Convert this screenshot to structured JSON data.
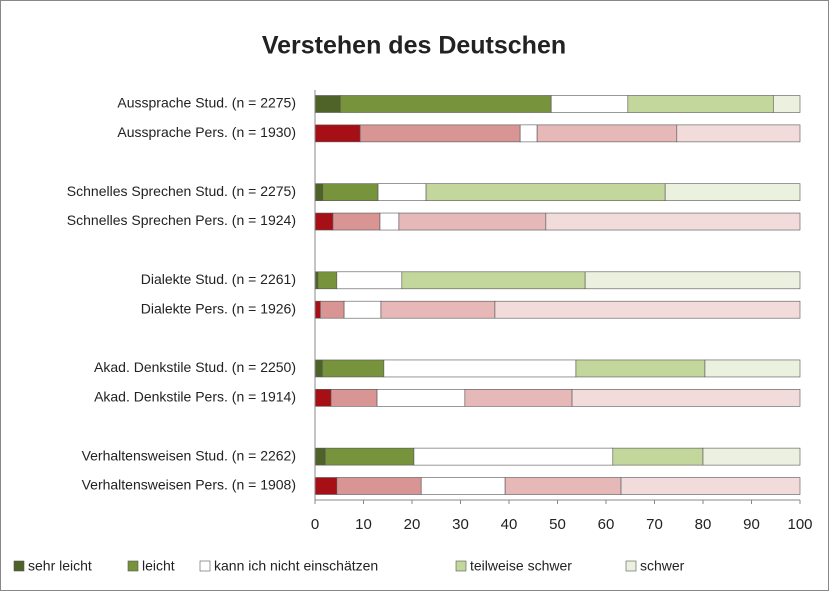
{
  "chart_data": {
    "type": "stacked-barh",
    "title": "Verstehen des Deutschen",
    "categories": [
      "Aussprache Stud. (n = 2275)",
      "Aussprache Pers. (n = 1930)",
      null,
      "Schnelles Sprechen Stud. (n = 2275)",
      "Schnelles Sprechen Pers. (n = 1924)",
      null,
      "Dialekte Stud. (n = 2261)",
      "Dialekte Pers. (n = 1926)",
      null,
      "Akad. Denkstile Stud. (n = 2250)",
      "Akad. Denkstile Pers. (n = 1914)",
      null,
      "Verhaltensweisen Stud. (n = 2262)",
      "Verhaltensweisen Pers. (n = 1908)"
    ],
    "series": [
      {
        "name": "sehr leicht",
        "color": "#4f6228",
        "colors": [
          "#4f6228",
          "#a50f15",
          null,
          "#4f6228",
          "#a50f15",
          null,
          "#4f6228",
          "#a50f15",
          null,
          "#4f6228",
          "#a50f15",
          null,
          "#4f6228",
          "#a50f15"
        ],
        "values": [
          5.2,
          9.3,
          null,
          1.6,
          3.7,
          null,
          0.6,
          1.1,
          null,
          1.5,
          3.3,
          null,
          2.1,
          4.5
        ]
      },
      {
        "name": "leicht",
        "color": "#77933c",
        "colors": [
          "#77933c",
          "#d99594",
          null,
          "#77933c",
          "#d99594",
          null,
          "#77933c",
          "#d99594",
          null,
          "#77933c",
          "#d99594",
          null,
          "#77933c",
          "#d99594"
        ],
        "values": [
          43.5,
          33,
          null,
          11.4,
          9.7,
          null,
          3.9,
          4.9,
          null,
          12.7,
          9.5,
          null,
          18.3,
          17.4
        ]
      },
      {
        "name": "kann ich nicht einschätzen",
        "color": "#ffffff",
        "colors": [
          "#ffffff",
          "#ffffff",
          null,
          "#ffffff",
          "#ffffff",
          null,
          "#ffffff",
          "#ffffff",
          null,
          "#ffffff",
          "#ffffff",
          null,
          "#ffffff",
          "#ffffff"
        ],
        "values": [
          15.8,
          3.5,
          null,
          9.9,
          3.9,
          null,
          13.4,
          7.6,
          null,
          39.6,
          18.1,
          null,
          41,
          17.3
        ]
      },
      {
        "name": "teilweise schwer",
        "color": "#c3d69b",
        "colors": [
          "#c3d69b",
          "#e6b9b8",
          null,
          "#c3d69b",
          "#e6b9b8",
          null,
          "#c3d69b",
          "#e6b9b8",
          null,
          "#c3d69b",
          "#e6b9b8",
          null,
          "#c3d69b",
          "#e6b9b8"
        ],
        "values": [
          30,
          28.8,
          null,
          49.3,
          30.3,
          null,
          37.8,
          23.5,
          null,
          26.6,
          22.1,
          null,
          18.6,
          23.9
        ]
      },
      {
        "name": "schwer",
        "color": "#ebf1de",
        "colors": [
          "#ebf1de",
          "#f2dcdb",
          null,
          "#ebf1de",
          "#f2dcdb",
          null,
          "#ebf1de",
          "#f2dcdb",
          null,
          "#ebf1de",
          "#f2dcdb",
          null,
          "#ebf1de",
          "#f2dcdb"
        ],
        "values": [
          5.5,
          25.4,
          null,
          27.8,
          52.4,
          null,
          44.3,
          62.9,
          null,
          19.6,
          47,
          null,
          20,
          36.9
        ]
      }
    ],
    "xlim": [
      0,
      100
    ],
    "xticks": [
      0,
      10,
      20,
      30,
      40,
      50,
      60,
      70,
      80,
      90,
      100
    ],
    "legend": "bottom"
  }
}
